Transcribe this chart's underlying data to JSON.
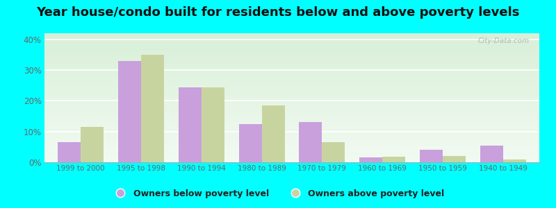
{
  "title": "Year house/condo built for residents below and above poverty levels",
  "categories": [
    "1999 to 2000",
    "1995 to 1998",
    "1990 to 1994",
    "1980 to 1989",
    "1970 to 1979",
    "1960 to 1969",
    "1950 to 1959",
    "1940 to 1949"
  ],
  "below_poverty": [
    6.5,
    33.0,
    24.5,
    12.5,
    13.0,
    1.5,
    4.0,
    5.5
  ],
  "above_poverty": [
    11.5,
    35.0,
    24.5,
    18.5,
    6.5,
    1.8,
    2.0,
    1.0
  ],
  "below_color": "#c9a0dc",
  "above_color": "#c8d4a0",
  "ylim": [
    0,
    42
  ],
  "yticks": [
    0,
    10,
    20,
    30,
    40
  ],
  "ytick_labels": [
    "0%",
    "10%",
    "20%",
    "30%",
    "40%"
  ],
  "bg_top_color": "#d8efd8",
  "bg_bottom_color": "#f2faf2",
  "legend_below": "Owners below poverty level",
  "legend_above": "Owners above poverty level",
  "bar_width": 0.38,
  "outer_bg": "#00ffff",
  "watermark": "City-Data.com",
  "title_fontsize": 13,
  "tick_color": "#666666",
  "legend_text_color": "#222222"
}
